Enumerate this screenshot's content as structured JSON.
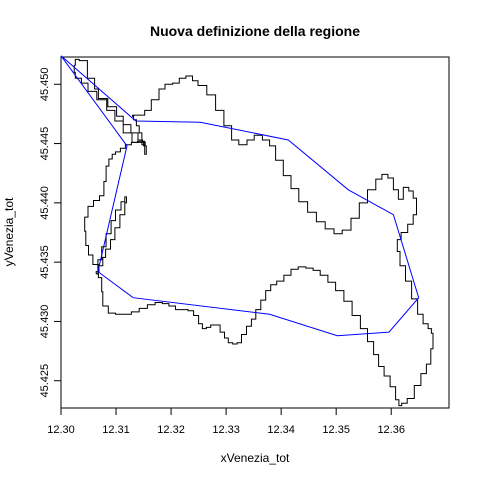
{
  "chart_data": {
    "type": "line",
    "title": "Nuova definizione della regione",
    "xlabel": "xVenezia_tot",
    "ylabel": "yVenezia_tot",
    "xlim": [
      12.3,
      12.3705
    ],
    "ylim": [
      45.4227,
      45.4523
    ],
    "x_ticks": [
      12.3,
      12.31,
      12.32,
      12.33,
      12.34,
      12.35,
      12.36
    ],
    "x_tick_labels": [
      "12.30",
      "12.31",
      "12.32",
      "12.33",
      "12.34",
      "12.35",
      "12.36"
    ],
    "y_ticks": [
      45.425,
      45.43,
      45.435,
      45.44,
      45.445,
      45.45
    ],
    "y_tick_labels": [
      "45.425",
      "45.430",
      "45.435",
      "45.440",
      "45.445",
      "45.450"
    ],
    "grid": false,
    "series": [
      {
        "color": "#000000",
        "style": "stair-step outline",
        "x": [
          12.3024,
          12.3026,
          12.3033,
          12.3048,
          12.3061,
          12.3068,
          12.3085,
          12.3101,
          12.3113,
          12.3127,
          12.314,
          12.3148,
          12.3153,
          12.3147,
          12.3129,
          12.3113,
          12.3098,
          12.3083,
          12.3065,
          12.3049,
          12.3037,
          12.3026,
          12.3024
        ],
        "y": [
          45.4516,
          45.4521,
          45.452,
          45.4505,
          45.4496,
          45.4488,
          45.4481,
          45.4473,
          45.4466,
          45.4459,
          45.4453,
          45.4451,
          45.4449,
          45.4451,
          45.4459,
          45.4469,
          45.4478,
          45.4487,
          45.4494,
          45.4501,
          45.4505,
          45.451,
          45.4516
        ]
      },
      {
        "color": "#000000",
        "style": "stair-step outline",
        "x": [
          12.313,
          12.3141,
          12.3152,
          12.3164,
          12.3178,
          12.3189,
          12.3203,
          12.3215,
          12.3227,
          12.3239,
          12.3249,
          12.3265,
          12.3281,
          12.3296,
          12.331,
          12.3323,
          12.3338,
          12.3351,
          12.3366,
          12.3379,
          12.339,
          12.3404,
          12.3418,
          12.3432,
          12.3448,
          12.3464,
          12.348,
          12.3496,
          12.3511,
          12.3527,
          12.3542,
          12.3557,
          12.3572,
          12.3583,
          12.3594,
          12.3604,
          12.3613,
          12.3622,
          12.3632,
          12.364,
          12.3646,
          12.3646,
          12.364,
          12.363,
          12.3618,
          12.3611,
          12.3616,
          12.3626,
          12.3637,
          12.3648,
          12.3658,
          12.3667,
          12.3673,
          12.3676,
          12.3672,
          12.3664,
          12.3654,
          12.3642,
          12.3629,
          12.3619,
          12.3614,
          12.3608,
          12.3598,
          12.3587,
          12.3577,
          12.3568,
          12.3557,
          12.3544,
          12.3529,
          12.3514,
          12.3499,
          12.3485,
          12.3471,
          12.3458,
          12.3445,
          12.3431,
          12.3418,
          12.3405,
          12.3392,
          12.3381,
          12.3372,
          12.3363,
          12.3354,
          12.3346,
          12.3337,
          12.3328,
          12.332,
          12.3312,
          12.3304,
          12.3297,
          12.3289,
          12.328,
          12.3272,
          12.3264,
          12.3257,
          12.325,
          12.3241,
          12.3231,
          12.322,
          12.3208,
          12.3196,
          12.3184,
          12.3171,
          12.3157,
          12.3142,
          12.3128,
          12.3114,
          12.3099,
          12.3086,
          12.3076,
          12.3074,
          12.3068,
          12.3058,
          12.305,
          12.3045,
          12.3043,
          12.3049,
          12.3059,
          12.307,
          12.3078,
          12.3082,
          12.3087,
          12.3093,
          12.3099,
          12.3108,
          12.3117,
          12.3128,
          12.3139,
          12.315,
          12.3155,
          12.3152,
          12.3147,
          12.3142,
          12.3137,
          12.3132,
          12.313
        ],
        "y": [
          45.4474,
          45.4474,
          45.4478,
          45.4487,
          45.4496,
          45.45,
          45.4501,
          45.4505,
          45.4507,
          45.4503,
          45.4499,
          45.4491,
          45.4478,
          45.4465,
          45.4453,
          45.4449,
          45.4453,
          45.4457,
          45.4453,
          45.4448,
          45.4436,
          45.4423,
          45.4412,
          45.4401,
          45.4392,
          45.4384,
          45.4378,
          45.4374,
          45.4377,
          45.4387,
          45.44,
          45.4411,
          45.442,
          45.4424,
          45.4421,
          45.4411,
          45.4403,
          45.4413,
          45.441,
          45.4404,
          45.4398,
          45.439,
          45.4382,
          45.4375,
          45.4369,
          45.4359,
          45.4347,
          45.4334,
          45.4319,
          45.4306,
          45.4298,
          45.4294,
          45.429,
          45.4277,
          45.4264,
          45.4256,
          45.4246,
          45.4235,
          45.4231,
          45.4229,
          45.4234,
          45.4245,
          45.4254,
          45.4262,
          45.4272,
          45.4283,
          45.4294,
          45.4305,
          45.4317,
          45.4326,
          45.4333,
          45.4339,
          45.4343,
          45.4345,
          45.4346,
          45.4344,
          45.4339,
          45.4334,
          45.4331,
          45.4326,
          45.4318,
          45.431,
          45.4302,
          45.4296,
          45.4289,
          45.4282,
          45.4281,
          45.4282,
          45.4286,
          45.4291,
          45.4297,
          45.4297,
          45.4295,
          45.4294,
          45.4298,
          45.4305,
          45.4309,
          45.431,
          45.431,
          45.4313,
          45.4315,
          45.4316,
          45.4314,
          45.4311,
          45.4308,
          45.4306,
          45.4306,
          45.4307,
          45.4313,
          45.4325,
          45.4337,
          45.4348,
          45.4356,
          45.4364,
          45.4376,
          45.4388,
          45.4397,
          45.4402,
          45.4406,
          45.4418,
          45.4431,
          45.4437,
          45.4441,
          45.4443,
          45.4446,
          45.4449,
          45.4451,
          45.4452,
          45.4448,
          45.4441,
          45.4452,
          45.4459,
          45.4465,
          45.447,
          45.4473,
          45.4474
        ]
      },
      {
        "color": "#000000",
        "style": "stair-step outline",
        "x": [
          12.3064,
          12.3067,
          12.3074,
          12.3082,
          12.3091,
          12.3099,
          12.3109,
          12.3116,
          12.3119,
          12.3116,
          12.3107,
          12.3098,
          12.309,
          12.3081,
          12.3076,
          12.3069,
          12.3064
        ],
        "y": [
          45.434,
          45.4352,
          45.4363,
          45.4374,
          45.4385,
          45.4394,
          45.4401,
          45.4405,
          45.44,
          45.439,
          45.4379,
          45.4369,
          45.4361,
          45.4354,
          45.4347,
          45.4342,
          45.434
        ]
      },
      {
        "color": "#0000ff",
        "style": "straight segments",
        "x": [
          12.3,
          12.312,
          12.3067,
          12.3131,
          12.3379,
          12.3502,
          12.3596,
          12.365,
          12.3604,
          12.3522,
          12.3413,
          12.3253,
          12.3136,
          12.3
        ],
        "y": [
          45.4524,
          45.4448,
          45.4342,
          45.432,
          45.4306,
          45.4288,
          45.4291,
          45.432,
          45.439,
          45.4411,
          45.4453,
          45.4468,
          45.4469,
          45.4524
        ]
      }
    ]
  }
}
